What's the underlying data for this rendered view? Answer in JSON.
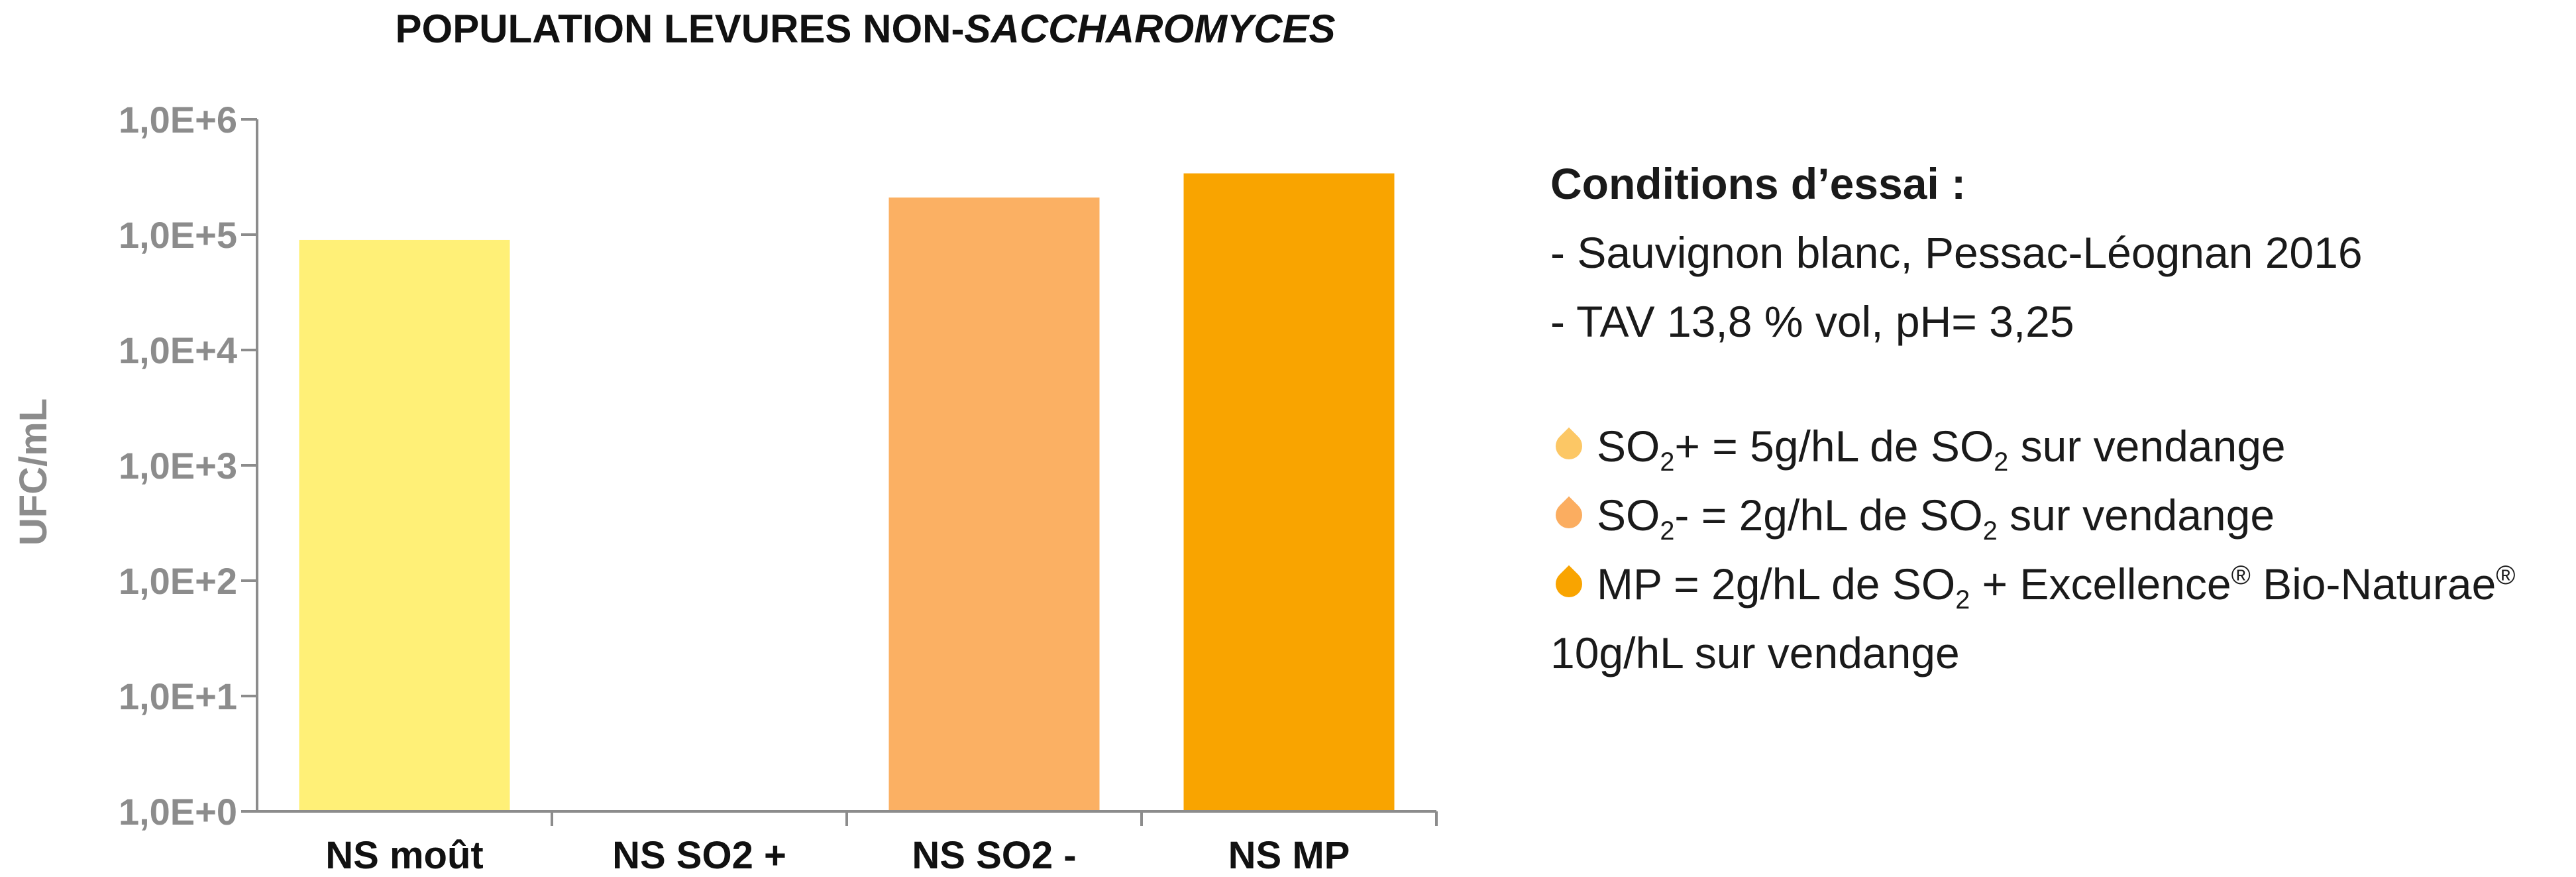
{
  "chart_data": {
    "type": "bar",
    "title": "POPULATION LEVURES NON-",
    "title_italic": "SACCHAROMYCES",
    "ylabel": "UFC/mL",
    "y_scale": "log10",
    "ylim": [
      1,
      1000000
    ],
    "y_ticks": [
      "1,0E+0",
      "1,0E+1",
      "1,0E+2",
      "1,0E+3",
      "1,0E+4",
      "1,0E+5",
      "1,0E+6"
    ],
    "categories": [
      "NS moût",
      "NS SO2 +",
      "NS SO2 -",
      "NS MP"
    ],
    "values": [
      90000,
      1,
      210000,
      340000
    ],
    "colors": [
      "#FFF077",
      "#FDE9A8",
      "#FBB063",
      "#F9A400"
    ],
    "grid": false
  },
  "notes": {
    "heading": "Conditions d’essai :",
    "lines": [
      "- Sauvignon blanc, Pessac-Léognan 2016",
      "- TAV 13,8 % vol, pH= 3,25"
    ],
    "legend": [
      {
        "color": "#FCC765",
        "pre": "SO",
        "sub": "2",
        "mid": "+ = 5g/hL de SO",
        "sub2": "2",
        "post": " sur vendange"
      },
      {
        "color": "#FBAD60",
        "pre": "SO",
        "sub": "2",
        "mid": "- = 2g/hL de SO",
        "sub2": "2",
        "post": " sur vendange"
      },
      {
        "color": "#F9A400",
        "pre": "MP = 2g/hL de SO",
        "sub": "2",
        "mid": " + Excellence",
        "sup": "®",
        "mid2": " Bio-Naturae",
        "sup2": "®"
      }
    ],
    "last_line": "10g/hL sur vendange"
  }
}
